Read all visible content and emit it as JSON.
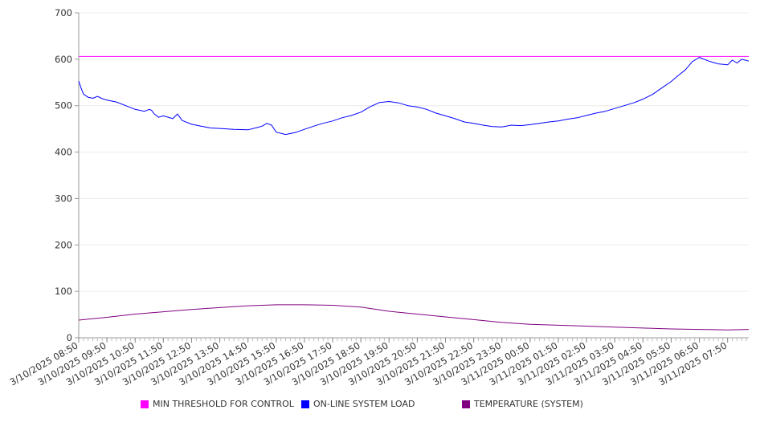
{
  "chart_data": {
    "type": "line",
    "title": "",
    "xlabel": "",
    "ylabel": "",
    "ylim": [
      0,
      700
    ],
    "yticks": [
      0,
      100,
      200,
      300,
      400,
      500,
      600,
      700
    ],
    "grid": true,
    "legend_position": "bottom",
    "x_ticks": [
      "3/10/2025 08:50",
      "3/10/2025 09:50",
      "3/10/2025 10:50",
      "3/10/2025 11:50",
      "3/10/2025 12:50",
      "3/10/2025 13:50",
      "3/10/2025 14:50",
      "3/10/2025 15:50",
      "3/10/2025 16:50",
      "3/10/2025 17:50",
      "3/10/2025 18:50",
      "3/10/2025 19:50",
      "3/10/2025 20:50",
      "3/10/2025 21:50",
      "3/10/2025 22:50",
      "3/10/2025 23:50",
      "3/11/2025 00:50",
      "3/11/2025 01:50",
      "3/11/2025 02:50",
      "3/11/2025 03:50",
      "3/11/2025 04:50",
      "3/11/2025 05:50",
      "3/11/2025 06:50",
      "3/11/2025 07:50"
    ],
    "x_range": [
      "3/10/2025 08:50",
      "3/11/2025 08:35"
    ],
    "series": [
      {
        "name": "MIN THRESHOLD FOR CONTROL",
        "color": "#ff00ff",
        "x": [
          "3/10/2025 08:50",
          "3/11/2025 08:35"
        ],
        "y": [
          606,
          606
        ]
      },
      {
        "name": "ON-LINE SYSTEM LOAD",
        "color": "#0000ff",
        "x": [
          "3/10/2025 08:50",
          "3/10/2025 08:55",
          "3/10/2025 09:00",
          "3/10/2025 09:10",
          "3/10/2025 09:20",
          "3/10/2025 09:30",
          "3/10/2025 09:40",
          "3/10/2025 09:50",
          "3/10/2025 10:10",
          "3/10/2025 10:30",
          "3/10/2025 10:50",
          "3/10/2025 11:10",
          "3/10/2025 11:20",
          "3/10/2025 11:25",
          "3/10/2025 11:30",
          "3/10/2025 11:40",
          "3/10/2025 11:50",
          "3/10/2025 12:10",
          "3/10/2025 12:20",
          "3/10/2025 12:30",
          "3/10/2025 12:50",
          "3/10/2025 13:10",
          "3/10/2025 13:30",
          "3/10/2025 13:50",
          "3/10/2025 14:20",
          "3/10/2025 14:50",
          "3/10/2025 15:10",
          "3/10/2025 15:20",
          "3/10/2025 15:30",
          "3/10/2025 15:40",
          "3/10/2025 15:50",
          "3/10/2025 16:10",
          "3/10/2025 16:30",
          "3/10/2025 16:50",
          "3/10/2025 17:10",
          "3/10/2025 17:30",
          "3/10/2025 17:50",
          "3/10/2025 18:10",
          "3/10/2025 18:30",
          "3/10/2025 18:50",
          "3/10/2025 19:10",
          "3/10/2025 19:30",
          "3/10/2025 19:50",
          "3/10/2025 20:10",
          "3/10/2025 20:30",
          "3/10/2025 20:50",
          "3/10/2025 21:10",
          "3/10/2025 21:30",
          "3/10/2025 21:50",
          "3/10/2025 22:10",
          "3/10/2025 22:30",
          "3/10/2025 22:50",
          "3/10/2025 23:10",
          "3/10/2025 23:30",
          "3/10/2025 23:50",
          "3/11/2025 00:10",
          "3/11/2025 00:30",
          "3/11/2025 00:50",
          "3/11/2025 01:10",
          "3/11/2025 01:30",
          "3/11/2025 01:50",
          "3/11/2025 02:10",
          "3/11/2025 02:30",
          "3/11/2025 02:50",
          "3/11/2025 03:10",
          "3/11/2025 03:30",
          "3/11/2025 03:50",
          "3/11/2025 04:10",
          "3/11/2025 04:30",
          "3/11/2025 04:50",
          "3/11/2025 05:10",
          "3/11/2025 05:30",
          "3/11/2025 05:50",
          "3/11/2025 06:05",
          "3/11/2025 06:20",
          "3/11/2025 06:35",
          "3/11/2025 06:50",
          "3/11/2025 07:10",
          "3/11/2025 07:30",
          "3/11/2025 07:50",
          "3/11/2025 08:00",
          "3/11/2025 08:10",
          "3/11/2025 08:20",
          "3/11/2025 08:35"
        ],
        "y": [
          553,
          538,
          525,
          518,
          516,
          520,
          515,
          512,
          508,
          500,
          492,
          488,
          492,
          490,
          483,
          475,
          478,
          472,
          482,
          468,
          460,
          456,
          452,
          451,
          449,
          448,
          453,
          456,
          462,
          458,
          443,
          438,
          442,
          449,
          456,
          462,
          467,
          474,
          479,
          486,
          498,
          507,
          509,
          506,
          500,
          497,
          492,
          484,
          478,
          472,
          465,
          462,
          458,
          455,
          454,
          458,
          457,
          459,
          462,
          465,
          467,
          471,
          474,
          479,
          484,
          488,
          494,
          500,
          506,
          514,
          524,
          538,
          552,
          565,
          577,
          595,
          604,
          596,
          590,
          588,
          598,
          592,
          600,
          596
        ]
      },
      {
        "name": "TEMPERATURE (SYSTEM)",
        "color": "#800080",
        "x": [
          "3/10/2025 08:50",
          "3/10/2025 09:50",
          "3/10/2025 10:50",
          "3/10/2025 11:50",
          "3/10/2025 12:50",
          "3/10/2025 13:50",
          "3/10/2025 14:50",
          "3/10/2025 15:50",
          "3/10/2025 16:50",
          "3/10/2025 17:50",
          "3/10/2025 18:50",
          "3/10/2025 19:50",
          "3/10/2025 20:50",
          "3/10/2025 21:50",
          "3/10/2025 22:50",
          "3/10/2025 23:50",
          "3/11/2025 00:50",
          "3/11/2025 01:50",
          "3/11/2025 02:50",
          "3/11/2025 03:50",
          "3/11/2025 04:50",
          "3/11/2025 05:50",
          "3/11/2025 06:50",
          "3/11/2025 07:50",
          "3/11/2025 08:35"
        ],
        "y": [
          38,
          44,
          51,
          56,
          61,
          65,
          69,
          71,
          71,
          70,
          66,
          57,
          51,
          45,
          39,
          33,
          29,
          27,
          25,
          23,
          21,
          19,
          18,
          17,
          18
        ]
      }
    ]
  }
}
